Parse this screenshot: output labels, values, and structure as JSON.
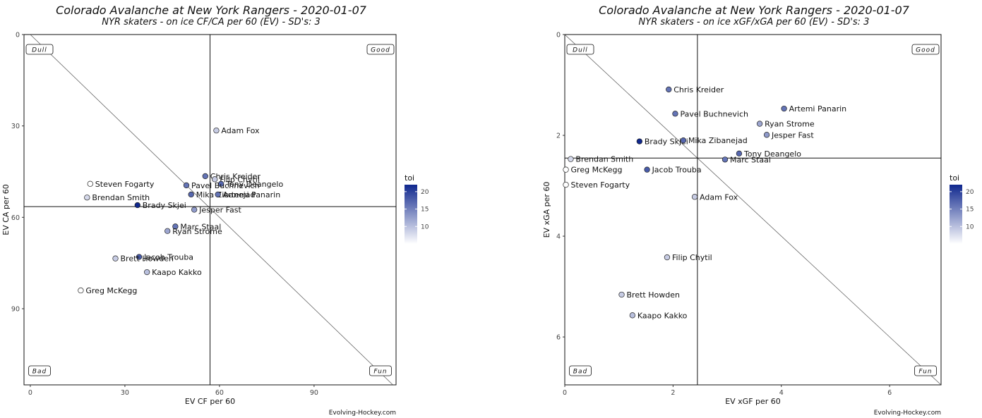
{
  "chart_data": [
    {
      "type": "scatter",
      "title": "Colorado Avalanche at New York Rangers - 2020-01-07",
      "subtitle": "NYR skaters - on ice CF/CA per 60 (EV) - SD's: 3",
      "xlabel": "EV CF per 60",
      "ylabel": "EV CA per 60",
      "xlim": [
        -2,
        116
      ],
      "ylim": [
        0,
        115
      ],
      "y_inverted": true,
      "xticks": [
        0,
        30,
        60,
        90
      ],
      "yticks": [
        0,
        30,
        60,
        90
      ],
      "x_ref": 57,
      "y_ref": 56.5,
      "diagonal": true,
      "grid": false,
      "quadrants": {
        "top_left": "Dull",
        "top_right": "Good",
        "bottom_left": "Bad",
        "bottom_right": "Fun"
      },
      "legend": {
        "title": "toi",
        "ticks": [
          10,
          15,
          20
        ],
        "range": [
          5,
          22
        ],
        "placement": "right"
      },
      "credit": "Evolving-Hockey.com",
      "points": [
        {
          "name": "Adam Fox",
          "x": 59,
          "y": 31.5,
          "toi": 9
        },
        {
          "name": "Chris Kreider",
          "x": 55.5,
          "y": 46.5,
          "toi": 16
        },
        {
          "name": "Filip Chytil",
          "x": 58.5,
          "y": 47.5,
          "toi": 9
        },
        {
          "name": "Tony Deangelo",
          "x": 60.5,
          "y": 49,
          "toi": 17
        },
        {
          "name": "Pavel Buchnevich",
          "x": 49.5,
          "y": 49.5,
          "toi": 16
        },
        {
          "name": "Mika Zibanejad",
          "x": 51,
          "y": 52.5,
          "toi": 17
        },
        {
          "name": "Artemi Panarin",
          "x": 59.5,
          "y": 52.5,
          "toi": 16
        },
        {
          "name": "Jesper Fast",
          "x": 52,
          "y": 57.5,
          "toi": 13
        },
        {
          "name": "Steven Fogarty",
          "x": 19,
          "y": 49,
          "toi": 5
        },
        {
          "name": "Brendan Smith",
          "x": 18,
          "y": 53.5,
          "toi": 8
        },
        {
          "name": "Brady Skjei",
          "x": 34,
          "y": 56,
          "toi": 22
        },
        {
          "name": "Marc Staal",
          "x": 46,
          "y": 63,
          "toi": 16
        },
        {
          "name": "Ryan Strome",
          "x": 43.5,
          "y": 64.5,
          "toi": 12
        },
        {
          "name": "Jacob Trouba",
          "x": 34.5,
          "y": 73,
          "toi": 18
        },
        {
          "name": "Brett Howden",
          "x": 27,
          "y": 73.5,
          "toi": 9
        },
        {
          "name": "Kaapo Kakko",
          "x": 37,
          "y": 78,
          "toi": 10
        },
        {
          "name": "Greg McKegg",
          "x": 16,
          "y": 84,
          "toi": 5
        }
      ]
    },
    {
      "type": "scatter",
      "title": "Colorado Avalanche at New York Rangers - 2020-01-07",
      "subtitle": "NYR skaters - on ice xGF/xGA per 60 (EV) - SD's: 3",
      "xlabel": "EV xGF per 60",
      "ylabel": "EV xGA per 60",
      "xlim": [
        0,
        6.95
      ],
      "ylim": [
        0,
        6.95
      ],
      "y_inverted": true,
      "xticks": [
        0,
        2,
        4,
        6
      ],
      "yticks": [
        0,
        2,
        4,
        6
      ],
      "x_ref": 2.45,
      "y_ref": 2.45,
      "diagonal": true,
      "grid": false,
      "quadrants": {
        "top_left": "Dull",
        "top_right": "Good",
        "bottom_left": "Bad",
        "bottom_right": "Fun"
      },
      "legend": {
        "title": "toi",
        "ticks": [
          10,
          15,
          20
        ],
        "range": [
          5,
          22
        ],
        "placement": "right"
      },
      "credit": "Evolving-Hockey.com",
      "points": [
        {
          "name": "Chris Kreider",
          "x": 1.92,
          "y": 1.09,
          "toi": 16
        },
        {
          "name": "Artemi Panarin",
          "x": 4.05,
          "y": 1.47,
          "toi": 16
        },
        {
          "name": "Pavel Buchnevich",
          "x": 2.04,
          "y": 1.57,
          "toi": 16
        },
        {
          "name": "Ryan Strome",
          "x": 3.6,
          "y": 1.77,
          "toi": 12
        },
        {
          "name": "Jesper Fast",
          "x": 3.73,
          "y": 1.99,
          "toi": 13
        },
        {
          "name": "Brady Skjei",
          "x": 1.38,
          "y": 2.12,
          "toi": 22
        },
        {
          "name": "Mika Zibanejad",
          "x": 2.19,
          "y": 2.1,
          "toi": 17
        },
        {
          "name": "Tony Deangelo",
          "x": 3.22,
          "y": 2.36,
          "toi": 17
        },
        {
          "name": "Marc Staal",
          "x": 2.96,
          "y": 2.48,
          "toi": 16
        },
        {
          "name": "Brendan Smith",
          "x": 0.11,
          "y": 2.47,
          "toi": 8
        },
        {
          "name": "Greg McKegg",
          "x": 0.02,
          "y": 2.68,
          "toi": 5
        },
        {
          "name": "Jacob Trouba",
          "x": 1.52,
          "y": 2.68,
          "toi": 18
        },
        {
          "name": "Steven Fogarty",
          "x": 0.02,
          "y": 2.98,
          "toi": 5
        },
        {
          "name": "Adam Fox",
          "x": 2.4,
          "y": 3.22,
          "toi": 9
        },
        {
          "name": "Filip Chytil",
          "x": 1.89,
          "y": 4.42,
          "toi": 9
        },
        {
          "name": "Brett Howden",
          "x": 1.05,
          "y": 5.16,
          "toi": 9
        },
        {
          "name": "Kaapo Kakko",
          "x": 1.25,
          "y": 5.57,
          "toi": 10
        }
      ]
    }
  ]
}
